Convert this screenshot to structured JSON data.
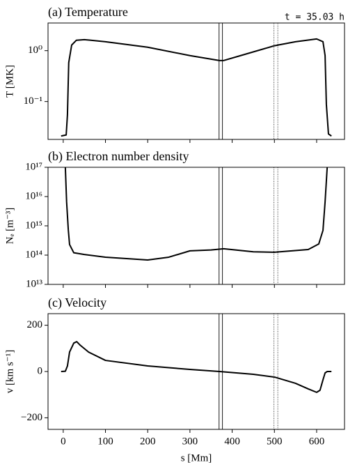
{
  "chart_data": [
    {
      "type": "line",
      "title": "(a) Temperature",
      "annotation": "t = 35.03 h",
      "ylabel": "T [MK]",
      "log_y": true,
      "xlim": [
        -36,
        666
      ],
      "ylim": [
        0.018,
        3.5
      ],
      "xticks": [
        0,
        100,
        200,
        300,
        400,
        500,
        600
      ],
      "yticks": [
        {
          "value": 1,
          "label": "10⁰"
        },
        {
          "value": 0.1,
          "label": "10⁻¹"
        }
      ],
      "vlines": [
        {
          "x": 369,
          "style": "solid"
        },
        {
          "x": 377,
          "style": "solid"
        },
        {
          "x": 499,
          "style": "dotted"
        },
        {
          "x": 508,
          "style": "dotted"
        }
      ],
      "x": [
        -5,
        7,
        10,
        13,
        20,
        31,
        50,
        100,
        200,
        300,
        370,
        380,
        420,
        500,
        550,
        600,
        615,
        620,
        623,
        628,
        635
      ],
      "series": [
        {
          "color": "#000000",
          "values": [
            0.021,
            0.022,
            0.055,
            0.58,
            1.29,
            1.6,
            1.65,
            1.5,
            1.17,
            0.8,
            0.64,
            0.64,
            0.8,
            1.25,
            1.5,
            1.7,
            1.5,
            0.8,
            0.088,
            0.023,
            0.021
          ]
        }
      ]
    },
    {
      "type": "line",
      "title": "(b) Electron number density",
      "ylabel": "Nₑ [m⁻³]",
      "log_y": true,
      "xlim": [
        -36,
        666
      ],
      "ylim": [
        10000000000000.0,
        1e+17
      ],
      "xticks": [
        0,
        100,
        200,
        300,
        400,
        500,
        600
      ],
      "yticks": [
        {
          "value": 1e+17,
          "label": "10¹⁷"
        },
        {
          "value": 1e+16,
          "label": "10¹⁶"
        },
        {
          "value": 1000000000000000.0,
          "label": "10¹⁵"
        },
        {
          "value": 100000000000000.0,
          "label": "10¹⁴"
        },
        {
          "value": 10000000000000.0,
          "label": "10¹³"
        }
      ],
      "vlines": [
        {
          "x": 369,
          "style": "solid"
        },
        {
          "x": 377,
          "style": "solid"
        },
        {
          "x": 499,
          "style": "dotted"
        },
        {
          "x": 508,
          "style": "dotted"
        }
      ],
      "x": [
        5,
        8,
        12,
        15,
        25,
        50,
        100,
        200,
        250,
        300,
        350,
        380,
        450,
        500,
        580,
        605,
        615,
        620,
        625
      ],
      "series": [
        {
          "color": "#000000",
          "values": [
            1e+17,
            6600000000000000.0,
            730000000000000.0,
            230000000000000.0,
            120000000000000.0,
            105000000000000.0,
            85000000000000.0,
            68000000000000.0,
            85000000000000.0,
            140000000000000.0,
            150000000000000.0,
            165000000000000.0,
            130000000000000.0,
            125000000000000.0,
            155000000000000.0,
            240000000000000.0,
            700000000000000.0,
            6600000000000000.0,
            1e+17
          ]
        }
      ]
    },
    {
      "type": "line",
      "title": "(c) Velocity",
      "ylabel": "v [km s⁻¹]",
      "xlabel": "s [Mm]",
      "xlim": [
        -36,
        666
      ],
      "ylim": [
        -250,
        250
      ],
      "xticks": [
        0,
        100,
        200,
        300,
        400,
        500,
        600
      ],
      "yticks": [
        200,
        0,
        {
          "value": -200,
          "label": "−200"
        }
      ],
      "vlines": [
        {
          "x": 369,
          "style": "solid"
        },
        {
          "x": 377,
          "style": "solid"
        },
        {
          "x": 499,
          "style": "dotted"
        },
        {
          "x": 508,
          "style": "dotted"
        }
      ],
      "x": [
        -5,
        5,
        10,
        15,
        25,
        32,
        40,
        60,
        100,
        200,
        300,
        370,
        450,
        500,
        550,
        580,
        600,
        608,
        615,
        620,
        625,
        635
      ],
      "series": [
        {
          "color": "#000000",
          "values": [
            0,
            1,
            24,
            84,
            123,
            129,
            114,
            84,
            48,
            24,
            9,
            0,
            -12,
            -24,
            -51,
            -75,
            -90,
            -81,
            -36,
            -6,
            0,
            0
          ]
        }
      ]
    }
  ]
}
